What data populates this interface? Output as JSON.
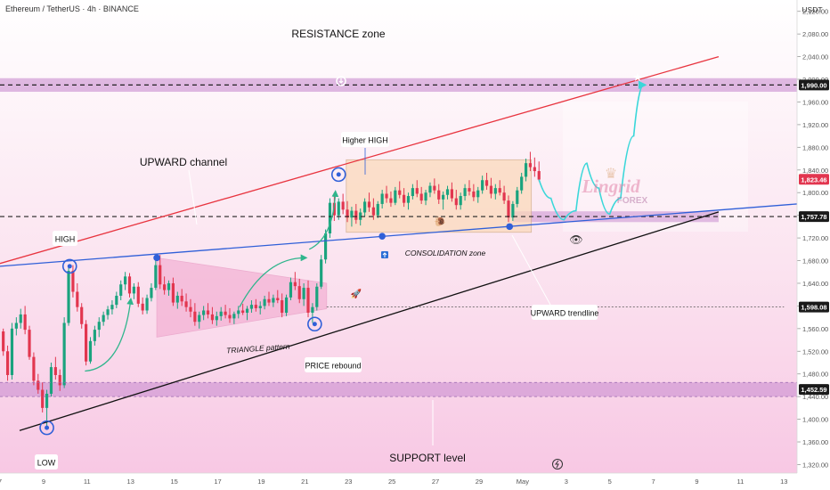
{
  "header": {
    "symbol_line": "Ethereum / TetherUS · 4h · BINANCE",
    "currency": "USDT"
  },
  "chart_data": {
    "type": "candlestick",
    "ylim": [
      1305,
      2140
    ],
    "y_ticks": [
      2120,
      2080,
      2040,
      2000,
      1960,
      1920,
      1880,
      1840,
      1800,
      1760,
      1720,
      1680,
      1640,
      1600,
      1560,
      1520,
      1480,
      1440,
      1400,
      1360,
      1320
    ],
    "y_tick_labels": [
      "2,120.00",
      "2,080.00",
      "2,040.00",
      "2,000.00",
      "1,960.00",
      "1,920.00",
      "1,880.00",
      "1,840.00",
      "1,800.00",
      "1,760.00",
      "1,720.00",
      "1,680.00",
      "1,640.00",
      "1,600.00",
      "1,560.00",
      "1,520.00",
      "1,480.00",
      "1,440.00",
      "1,400.00",
      "1,360.00",
      "1,320.00"
    ],
    "x_ticks": [
      {
        "day": 7,
        "label": "7"
      },
      {
        "day": 9,
        "label": "9"
      },
      {
        "day": 11,
        "label": "11"
      },
      {
        "day": 13,
        "label": "13"
      },
      {
        "day": 15,
        "label": "15"
      },
      {
        "day": 17,
        "label": "17"
      },
      {
        "day": 19,
        "label": "19"
      },
      {
        "day": 21,
        "label": "21"
      },
      {
        "day": 23,
        "label": "23"
      },
      {
        "day": 25,
        "label": "25"
      },
      {
        "day": 27,
        "label": "27"
      },
      {
        "day": 29,
        "label": "29"
      },
      {
        "day": 31,
        "label": "May"
      },
      {
        "day": 33,
        "label": "3"
      },
      {
        "day": 35,
        "label": "5"
      },
      {
        "day": 37,
        "label": "7"
      },
      {
        "day": 39,
        "label": "9"
      },
      {
        "day": 41,
        "label": "11"
      },
      {
        "day": 43,
        "label": "13"
      }
    ],
    "xlim": [
      7,
      43.6
    ],
    "price_labels": [
      {
        "value": 1990.0,
        "text": "1,990.00",
        "color": "#1a1a1a"
      },
      {
        "value": 1823.46,
        "text": "1,823.46",
        "color": "#e2364f"
      },
      {
        "value": 1757.78,
        "text": "1,757.78",
        "color": "#1a1a1a"
      },
      {
        "value": 1598.08,
        "text": "1,598.08",
        "color": "#1a1a1a"
      },
      {
        "value": 1452.59,
        "text": "1,452.59",
        "color": "#1a1a1a"
      }
    ],
    "zones": [
      {
        "name": "resistance",
        "from": 1978,
        "to": 2002
      },
      {
        "name": "support",
        "from": 1440,
        "to": 1465
      },
      {
        "name": "retest",
        "from": 1748,
        "to": 1767
      }
    ],
    "annotations": {
      "resistance_zone": "RESISTANCE zone",
      "upward_channel": "UPWARD channel",
      "higher_high": "Higher HIGH",
      "high": "HIGH",
      "low": "LOW",
      "consolidation_zone": "CONSOLIDATION zone",
      "triangle_pattern": "TRIANGLE pattern",
      "price_rebound": "PRICE rebound",
      "upward_trendline": "UPWARD trendline",
      "support_level": "SUPPORT level"
    },
    "candles": [
      [
        7.15,
        1555,
        1560,
        1512,
        1520
      ],
      [
        7.35,
        1520,
        1530,
        1468,
        1478
      ],
      [
        7.55,
        1478,
        1570,
        1470,
        1560
      ],
      [
        7.75,
        1560,
        1580,
        1548,
        1570
      ],
      [
        7.95,
        1570,
        1595,
        1560,
        1585
      ],
      [
        8.15,
        1585,
        1600,
        1550,
        1558
      ],
      [
        8.35,
        1558,
        1565,
        1505,
        1510
      ],
      [
        8.55,
        1510,
        1518,
        1460,
        1468
      ],
      [
        8.75,
        1468,
        1480,
        1445,
        1452
      ],
      [
        8.95,
        1452,
        1465,
        1412,
        1420
      ],
      [
        9.15,
        1420,
        1452,
        1385,
        1445
      ],
      [
        9.35,
        1445,
        1500,
        1440,
        1492
      ],
      [
        9.55,
        1492,
        1510,
        1470,
        1478
      ],
      [
        9.75,
        1478,
        1488,
        1450,
        1460
      ],
      [
        9.95,
        1460,
        1580,
        1455,
        1570
      ],
      [
        10.15,
        1570,
        1670,
        1565,
        1662
      ],
      [
        10.35,
        1662,
        1672,
        1615,
        1625
      ],
      [
        10.55,
        1625,
        1640,
        1590,
        1598
      ],
      [
        10.75,
        1598,
        1605,
        1560,
        1568
      ],
      [
        10.95,
        1568,
        1575,
        1495,
        1502
      ],
      [
        11.15,
        1502,
        1545,
        1498,
        1538
      ],
      [
        11.35,
        1538,
        1565,
        1530,
        1558
      ],
      [
        11.55,
        1558,
        1580,
        1545,
        1572
      ],
      [
        11.75,
        1572,
        1590,
        1565,
        1584
      ],
      [
        11.95,
        1584,
        1600,
        1576,
        1594
      ],
      [
        12.15,
        1594,
        1610,
        1585,
        1602
      ],
      [
        12.35,
        1602,
        1625,
        1596,
        1618
      ],
      [
        12.55,
        1618,
        1645,
        1610,
        1638
      ],
      [
        12.75,
        1638,
        1660,
        1628,
        1652
      ],
      [
        12.95,
        1652,
        1658,
        1615,
        1622
      ],
      [
        13.15,
        1622,
        1640,
        1612,
        1634
      ],
      [
        13.35,
        1634,
        1642,
        1598,
        1604
      ],
      [
        13.55,
        1604,
        1615,
        1585,
        1592
      ],
      [
        13.75,
        1592,
        1620,
        1586,
        1614
      ],
      [
        13.95,
        1614,
        1640,
        1608,
        1632
      ],
      [
        14.15,
        1632,
        1680,
        1628,
        1672
      ],
      [
        14.35,
        1672,
        1690,
        1630,
        1638
      ],
      [
        14.55,
        1638,
        1652,
        1620,
        1628
      ],
      [
        14.75,
        1628,
        1645,
        1618,
        1640
      ],
      [
        14.95,
        1640,
        1650,
        1600,
        1606
      ],
      [
        15.15,
        1606,
        1625,
        1595,
        1618
      ],
      [
        15.35,
        1618,
        1630,
        1600,
        1608
      ],
      [
        15.55,
        1608,
        1622,
        1590,
        1598
      ],
      [
        15.75,
        1598,
        1612,
        1580,
        1590
      ],
      [
        15.95,
        1590,
        1605,
        1565,
        1572
      ],
      [
        16.15,
        1572,
        1590,
        1560,
        1584
      ],
      [
        16.35,
        1584,
        1600,
        1575,
        1592
      ],
      [
        16.55,
        1592,
        1605,
        1578,
        1585
      ],
      [
        16.75,
        1585,
        1598,
        1568,
        1575
      ],
      [
        16.95,
        1575,
        1590,
        1565,
        1582
      ],
      [
        17.15,
        1582,
        1598,
        1574,
        1590
      ],
      [
        17.35,
        1590,
        1602,
        1578,
        1584
      ],
      [
        17.55,
        1584,
        1596,
        1570,
        1578
      ],
      [
        17.75,
        1578,
        1590,
        1568,
        1586
      ],
      [
        17.95,
        1586,
        1600,
        1578,
        1592
      ],
      [
        18.15,
        1592,
        1604,
        1584,
        1588
      ],
      [
        18.35,
        1588,
        1600,
        1575,
        1595
      ],
      [
        18.55,
        1595,
        1610,
        1588,
        1602
      ],
      [
        18.75,
        1602,
        1612,
        1590,
        1596
      ],
      [
        18.95,
        1596,
        1608,
        1585,
        1600
      ],
      [
        19.15,
        1600,
        1618,
        1594,
        1612
      ],
      [
        19.35,
        1612,
        1625,
        1600,
        1606
      ],
      [
        19.55,
        1606,
        1620,
        1598,
        1614
      ],
      [
        19.75,
        1614,
        1628,
        1605,
        1610
      ],
      [
        19.95,
        1610,
        1622,
        1580,
        1588
      ],
      [
        20.15,
        1588,
        1620,
        1582,
        1615
      ],
      [
        20.35,
        1615,
        1650,
        1610,
        1642
      ],
      [
        20.55,
        1642,
        1660,
        1628,
        1635
      ],
      [
        20.75,
        1635,
        1648,
        1605,
        1612
      ],
      [
        20.95,
        1612,
        1640,
        1600,
        1632
      ],
      [
        21.15,
        1632,
        1645,
        1580,
        1588
      ],
      [
        21.35,
        1588,
        1605,
        1570,
        1598
      ],
      [
        21.55,
        1598,
        1640,
        1592,
        1634
      ],
      [
        21.75,
        1634,
        1690,
        1630,
        1682
      ],
      [
        21.95,
        1682,
        1735,
        1675,
        1728
      ],
      [
        22.15,
        1728,
        1790,
        1720,
        1782
      ],
      [
        22.35,
        1782,
        1800,
        1750,
        1760
      ],
      [
        22.55,
        1760,
        1790,
        1752,
        1784
      ],
      [
        22.75,
        1784,
        1798,
        1762,
        1770
      ],
      [
        22.95,
        1770,
        1785,
        1748,
        1756
      ],
      [
        23.15,
        1756,
        1775,
        1740,
        1768
      ],
      [
        23.35,
        1768,
        1780,
        1745,
        1752
      ],
      [
        23.55,
        1752,
        1772,
        1742,
        1765
      ],
      [
        23.75,
        1765,
        1790,
        1758,
        1784
      ],
      [
        23.95,
        1784,
        1800,
        1766,
        1774
      ],
      [
        24.15,
        1774,
        1790,
        1752,
        1760
      ],
      [
        24.35,
        1760,
        1785,
        1755,
        1780
      ],
      [
        24.55,
        1780,
        1805,
        1772,
        1798
      ],
      [
        24.75,
        1798,
        1812,
        1782,
        1790
      ],
      [
        24.95,
        1790,
        1802,
        1775,
        1782
      ],
      [
        25.15,
        1782,
        1810,
        1778,
        1804
      ],
      [
        25.35,
        1804,
        1820,
        1790,
        1796
      ],
      [
        25.55,
        1796,
        1808,
        1775,
        1782
      ],
      [
        25.75,
        1782,
        1800,
        1770,
        1794
      ],
      [
        25.95,
        1794,
        1815,
        1788,
        1808
      ],
      [
        26.15,
        1808,
        1822,
        1792,
        1798
      ],
      [
        26.35,
        1798,
        1810,
        1780,
        1786
      ],
      [
        26.55,
        1786,
        1805,
        1778,
        1800
      ],
      [
        26.75,
        1800,
        1818,
        1792,
        1812
      ],
      [
        26.95,
        1812,
        1825,
        1798,
        1804
      ],
      [
        27.15,
        1804,
        1815,
        1780,
        1788
      ],
      [
        27.35,
        1788,
        1802,
        1770,
        1796
      ],
      [
        27.55,
        1796,
        1812,
        1788,
        1806
      ],
      [
        27.75,
        1806,
        1818,
        1784,
        1790
      ],
      [
        27.95,
        1790,
        1805,
        1770,
        1778
      ],
      [
        28.15,
        1778,
        1800,
        1770,
        1794
      ],
      [
        28.35,
        1794,
        1815,
        1786,
        1808
      ],
      [
        28.55,
        1808,
        1822,
        1795,
        1802
      ],
      [
        28.75,
        1802,
        1815,
        1785,
        1792
      ],
      [
        28.95,
        1792,
        1810,
        1782,
        1804
      ],
      [
        29.15,
        1804,
        1830,
        1798,
        1822
      ],
      [
        29.35,
        1822,
        1835,
        1805,
        1812
      ],
      [
        29.55,
        1812,
        1826,
        1790,
        1798
      ],
      [
        29.75,
        1798,
        1815,
        1788,
        1808
      ],
      [
        29.95,
        1808,
        1822,
        1795,
        1800
      ],
      [
        30.15,
        1800,
        1812,
        1780,
        1786
      ],
      [
        30.35,
        1786,
        1795,
        1748,
        1756
      ],
      [
        30.55,
        1756,
        1785,
        1750,
        1780
      ],
      [
        30.75,
        1780,
        1810,
        1774,
        1804
      ],
      [
        30.95,
        1804,
        1835,
        1798,
        1828
      ],
      [
        31.15,
        1828,
        1860,
        1820,
        1852
      ],
      [
        31.35,
        1852,
        1872,
        1838,
        1845
      ],
      [
        31.55,
        1845,
        1862,
        1828,
        1838
      ],
      [
        31.75,
        1838,
        1855,
        1820,
        1823
      ]
    ],
    "teal_path": [
      [
        31.75,
        1823
      ],
      [
        32.3,
        1790
      ],
      [
        32.9,
        1752
      ],
      [
        33.45,
        1768
      ],
      [
        33.95,
        1852
      ],
      [
        34.5,
        1808
      ],
      [
        35.0,
        1762
      ],
      [
        35.5,
        1790
      ],
      [
        36.1,
        1900
      ],
      [
        36.55,
        1990
      ]
    ],
    "lines": {
      "red_channel": [
        [
          7,
          1675
        ],
        [
          40.0,
          2040
        ]
      ],
      "blue_trendline": [
        [
          7,
          1670
        ],
        [
          43.6,
          1780
        ]
      ],
      "black_support": [
        [
          7.9,
          1380
        ],
        [
          40.0,
          1766
        ]
      ],
      "triangle_top": [
        [
          14.2,
          1685
        ],
        [
          22.0,
          1640
        ]
      ],
      "triangle_bottom": [
        [
          14.2,
          1545
        ],
        [
          22.0,
          1595
        ]
      ],
      "dotted_level": [
        [
          22.0,
          1598.08
        ],
        [
          43.0,
          1598.08
        ]
      ],
      "consolidation_box": [
        [
          22.9,
          1858
        ],
        [
          31.4,
          1730
        ]
      ]
    },
    "markers": {
      "high": [
        10.2,
        1670
      ],
      "low": [
        9.15,
        1385
      ],
      "higher_high": [
        22.55,
        1832
      ],
      "rebound": [
        21.45,
        1568
      ],
      "triangle_start": [
        14.2,
        1685
      ],
      "cons_point_a": [
        24.55,
        1723
      ],
      "cons_point_b": [
        30.4,
        1740
      ]
    }
  },
  "watermark": {
    "brand": "Lingrid",
    "sub": "FOREX",
    "crown": "♛"
  }
}
